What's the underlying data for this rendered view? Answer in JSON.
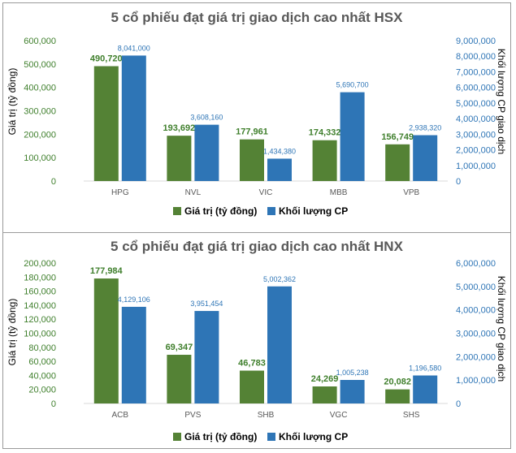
{
  "colors": {
    "series_left": "#548235",
    "series_right": "#2e75b6",
    "left_text": "#3f7f2c",
    "right_text": "#2e75b6"
  },
  "chart_data": [
    {
      "type": "bar",
      "title": "5 cổ phiếu đạt giá trị giao dịch cao nhất HSX",
      "categories": [
        "HPG",
        "NVL",
        "VIC",
        "MBB",
        "VPB"
      ],
      "series": [
        {
          "name": "Giá trị (tỷ đồng)",
          "axis": "left",
          "values": [
            490720,
            193692,
            177961,
            174332,
            156749
          ],
          "labels": [
            "490,720",
            "193,692",
            "177,961",
            "174,332",
            "156,749"
          ]
        },
        {
          "name": "Khối lượng CP",
          "axis": "right",
          "values": [
            8041000,
            3608160,
            1434380,
            5690700,
            2938320
          ],
          "labels": [
            "8,041,000",
            "3,608,160",
            "1,434,380",
            "5,690,700",
            "2,938,320"
          ]
        }
      ],
      "ylabel": "Giá trị (tỷ đồng)",
      "y2label": "Khối lượng CP giao dịch",
      "ylim": [
        0,
        600000
      ],
      "y2lim": [
        0,
        9000000
      ],
      "yticks": [
        "0",
        "100,000",
        "200,000",
        "300,000",
        "400,000",
        "500,000",
        "600,000"
      ],
      "y2ticks": [
        "0",
        "1,000,000",
        "2,000,000",
        "3,000,000",
        "4,000,000",
        "5,000,000",
        "6,000,000",
        "7,000,000",
        "8,000,000",
        "9,000,000"
      ],
      "grid": false,
      "legend_position": "bottom"
    },
    {
      "type": "bar",
      "title": "5 cổ phiếu đạt giá trị giao dịch cao nhất HNX",
      "categories": [
        "ACB",
        "PVS",
        "SHB",
        "VGC",
        "SHS"
      ],
      "series": [
        {
          "name": "Giá trị (tỷ đồng)",
          "axis": "left",
          "values": [
            177984,
            69347,
            46783,
            24269,
            20082
          ],
          "labels": [
            "177,984",
            "69,347",
            "46,783",
            "24,269",
            "20,082"
          ]
        },
        {
          "name": "Khối lượng CP",
          "axis": "right",
          "values": [
            4129106,
            3951454,
            5002362,
            1005238,
            1196580
          ],
          "labels": [
            "4,129,106",
            "3,951,454",
            "5,002,362",
            "1,005,238",
            "1,196,580"
          ]
        }
      ],
      "ylabel": "Giá trị (tỷ đồng)",
      "y2label": "Khối lượng CP giao dịch",
      "ylim": [
        0,
        200000
      ],
      "y2lim": [
        0,
        6000000
      ],
      "yticks": [
        "0",
        "20,000",
        "40,000",
        "60,000",
        "80,000",
        "100,000",
        "120,000",
        "140,000",
        "160,000",
        "180,000",
        "200,000"
      ],
      "y2ticks": [
        "0",
        "1,000,000",
        "2,000,000",
        "3,000,000",
        "4,000,000",
        "5,000,000",
        "6,000,000"
      ],
      "grid": false,
      "legend_position": "bottom"
    }
  ]
}
